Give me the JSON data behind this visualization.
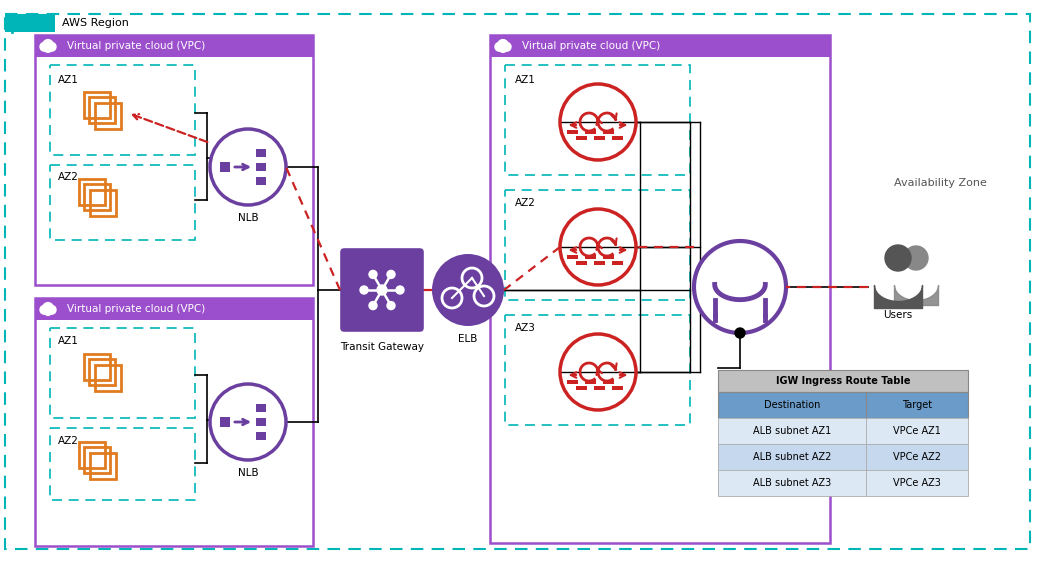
{
  "bg_color": "#ffffff",
  "aws_region_color": "#00b5b8",
  "vpc_color_purple": "#9b4fcc",
  "az_color_teal": "#00b5b8",
  "orange_color": "#e07b20",
  "purple_color": "#6b3fa0",
  "red_color": "#cc2222",
  "table_header_color": "#6b9bc8",
  "table_row_color": "#dce8f4",
  "table_alt_color": "#c5d8ee",
  "gray_table_header": "#c0c0c0",
  "availability_zone_label": "Availability Zone",
  "table_title": "IGW Ingress Route Table",
  "table_header": [
    "Destination",
    "Target"
  ],
  "table_rows": [
    [
      "ALB subnet AZ1",
      "VPCe AZ1"
    ],
    [
      "ALB subnet AZ2",
      "VPCe AZ2"
    ],
    [
      "ALB subnet AZ3",
      "VPCe AZ3"
    ]
  ]
}
